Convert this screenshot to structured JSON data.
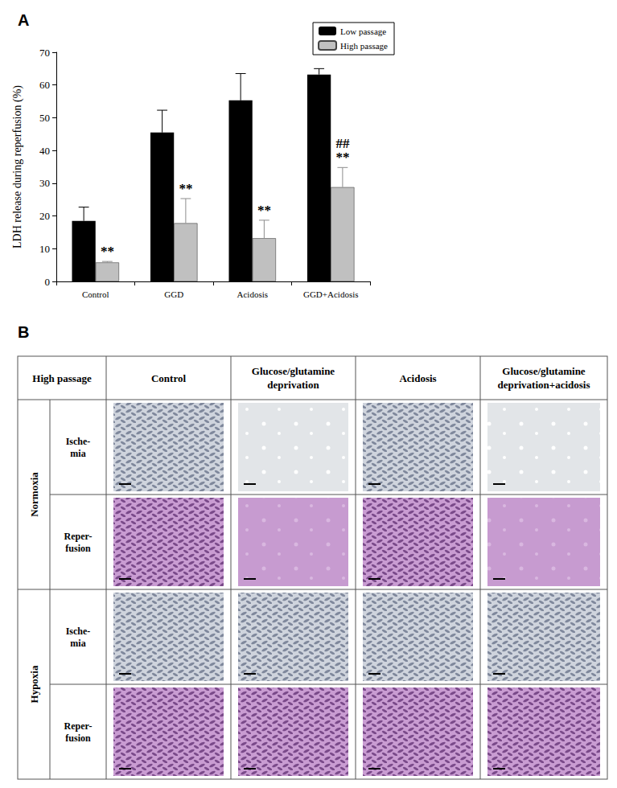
{
  "panel_labels": [
    "A",
    "B"
  ],
  "chart_data": {
    "type": "bar",
    "y_label": "LDH release during reperfusion (%)",
    "categories": [
      "Control",
      "GGD",
      "Acidosis",
      "GGD+Acidosis"
    ],
    "series": [
      {
        "name": "Low passage",
        "color": "#000000",
        "values": [
          18.5,
          45.5,
          55.3,
          63.2
        ],
        "errors": [
          4.2,
          6.8,
          8.2,
          1.8
        ]
      },
      {
        "name": "High passage",
        "color": "#c0c0c0",
        "values": [
          5.8,
          17.8,
          13.2,
          28.8
        ],
        "errors": [
          0.3,
          7.5,
          5.5,
          6.0
        ]
      }
    ],
    "annotations": [
      {
        "category": "Control",
        "series": "High passage",
        "text": "**"
      },
      {
        "category": "GGD",
        "series": "High passage",
        "text": "**"
      },
      {
        "category": "Acidosis",
        "series": "High passage",
        "text": "**"
      },
      {
        "category": "GGD+Acidosis",
        "series": "High passage",
        "text": "**"
      },
      {
        "category": "GGD+Acidosis",
        "series": "High passage",
        "text": "##"
      }
    ],
    "ylim": [
      0,
      70
    ],
    "yticks": [
      0,
      10,
      20,
      30,
      40,
      50,
      60,
      70
    ],
    "grid": false,
    "legend": "top-right"
  },
  "table": {
    "corner": "High passage",
    "columns": [
      [
        "Control"
      ],
      [
        "Glucose/glutamine",
        "deprivation"
      ],
      [
        "Acidosis"
      ],
      [
        "Glucose/glutamine",
        "deprivation+acidosis"
      ]
    ],
    "groups": [
      {
        "label": "Normoxia",
        "rows": [
          [
            "Ische-",
            "mia"
          ],
          [
            "Reper-",
            "fusion"
          ]
        ]
      },
      {
        "label": "Hypoxia",
        "rows": [
          [
            "Ische-",
            "mia"
          ],
          [
            "Reper-",
            "fusion"
          ]
        ]
      }
    ]
  }
}
